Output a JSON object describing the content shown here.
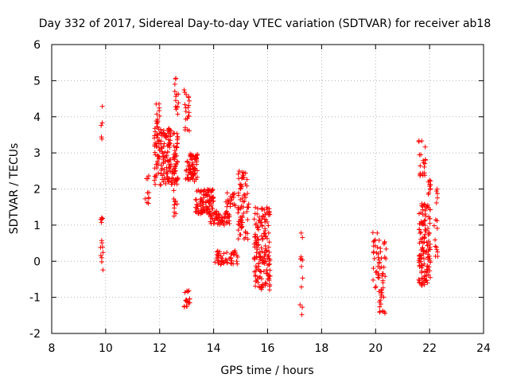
{
  "chart_data": {
    "type": "scatter",
    "title": "Day 332 of 2017, Sidereal Day-to-day VTEC variation (SDTVAR) for receiver ab18",
    "xlabel": "GPS time / hours",
    "ylabel": "SDTVAR / TECUs",
    "xlim": [
      8,
      24
    ],
    "ylim": [
      -2,
      6
    ],
    "xticks": [
      "8",
      "10",
      "12",
      "14",
      "16",
      "18",
      "20",
      "22",
      "24"
    ],
    "yticks": [
      "-2",
      "-1",
      "0",
      "1",
      "2",
      "3",
      "4",
      "5",
      "6"
    ],
    "grid": true,
    "marker": "+",
    "color": "#ff0000",
    "clusters": [
      {
        "name": "c1",
        "x": [
          9.8,
          9.9
        ],
        "y": [
          -0.25,
          1.3
        ],
        "n": 14
      },
      {
        "name": "c1b",
        "x": [
          9.82,
          9.88
        ],
        "y": [
          3.2,
          4.7
        ],
        "n": 5
      },
      {
        "name": "c2",
        "x": [
          11.45,
          11.6
        ],
        "y": [
          1.6,
          2.4
        ],
        "n": 10
      },
      {
        "name": "c3",
        "x": [
          11.8,
          12.7
        ],
        "y": [
          2.1,
          3.7
        ],
        "n": 180
      },
      {
        "name": "c3b",
        "x": [
          11.85,
          12.0
        ],
        "y": [
          3.7,
          4.4
        ],
        "n": 14
      },
      {
        "name": "c3c",
        "x": [
          12.55,
          12.7
        ],
        "y": [
          3.7,
          5.1
        ],
        "n": 14
      },
      {
        "name": "c4",
        "x": [
          12.5,
          12.65
        ],
        "y": [
          1.1,
          2.2
        ],
        "n": 12
      },
      {
        "name": "c5",
        "x": [
          12.9,
          13.1
        ],
        "y": [
          3.6,
          4.8
        ],
        "n": 20
      },
      {
        "name": "c5b",
        "x": [
          12.9,
          13.15
        ],
        "y": [
          -1.3,
          -0.8
        ],
        "n": 18
      },
      {
        "name": "c6",
        "x": [
          12.95,
          13.4
        ],
        "y": [
          2.2,
          3.0
        ],
        "n": 70
      },
      {
        "name": "c7",
        "x": [
          13.3,
          14.0
        ],
        "y": [
          1.3,
          2.0
        ],
        "n": 90
      },
      {
        "name": "c8",
        "x": [
          13.8,
          14.6
        ],
        "y": [
          1.0,
          1.4
        ],
        "n": 60
      },
      {
        "name": "c9",
        "x": [
          14.05,
          14.9
        ],
        "y": [
          -0.1,
          0.3
        ],
        "n": 50
      },
      {
        "name": "c10",
        "x": [
          14.45,
          14.8
        ],
        "y": [
          1.5,
          1.9
        ],
        "n": 20
      },
      {
        "name": "c11",
        "x": [
          14.9,
          15.3
        ],
        "y": [
          0.6,
          2.5
        ],
        "n": 70
      },
      {
        "name": "c12",
        "x": [
          15.5,
          16.1
        ],
        "y": [
          -0.8,
          1.5
        ],
        "n": 160
      },
      {
        "name": "c13",
        "x": [
          17.2,
          17.3
        ],
        "y": [
          -1.6,
          0.95
        ],
        "n": 12
      },
      {
        "name": "c14",
        "x": [
          19.9,
          20.1
        ],
        "y": [
          -0.9,
          0.9
        ],
        "n": 22
      },
      {
        "name": "c15",
        "x": [
          20.1,
          20.4
        ],
        "y": [
          -1.5,
          0.6
        ],
        "n": 45
      },
      {
        "name": "c16",
        "x": [
          21.6,
          21.85
        ],
        "y": [
          2.3,
          3.35
        ],
        "n": 20
      },
      {
        "name": "c17",
        "x": [
          21.6,
          22.05
        ],
        "y": [
          -0.7,
          1.6
        ],
        "n": 130
      },
      {
        "name": "c18",
        "x": [
          21.95,
          22.05
        ],
        "y": [
          1.8,
          2.3
        ],
        "n": 10
      },
      {
        "name": "c19",
        "x": [
          22.15,
          22.3
        ],
        "y": [
          0.1,
          2.2
        ],
        "n": 16
      }
    ]
  }
}
